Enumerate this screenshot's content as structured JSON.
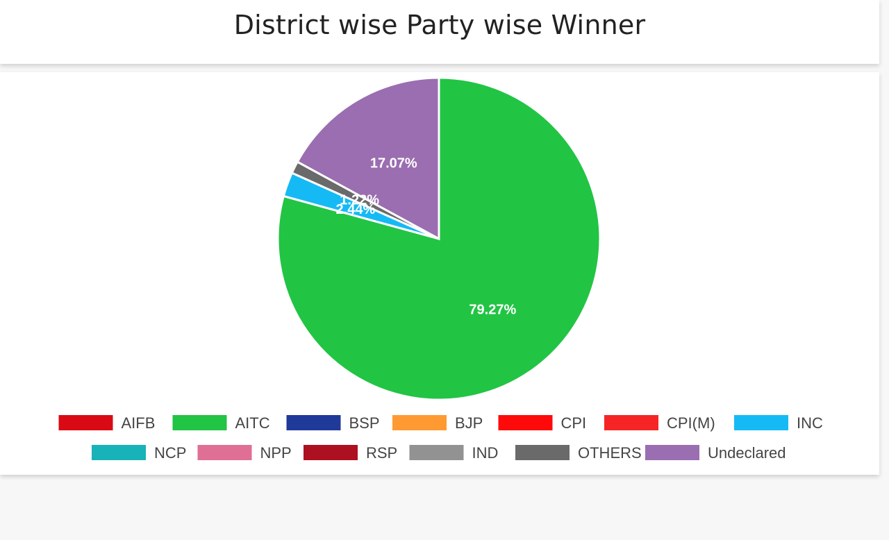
{
  "header": {
    "title": "District wise Party wise Winner"
  },
  "chart_data": {
    "type": "pie",
    "title": "District wise Party wise Winner",
    "slices": [
      {
        "name": "AIFB",
        "value": 0,
        "color": "#d90a14",
        "label": ""
      },
      {
        "name": "AITC",
        "value": 79.27,
        "color": "#22c444",
        "label": "79.27%"
      },
      {
        "name": "BSP",
        "value": 0,
        "color": "#1f3a98",
        "label": ""
      },
      {
        "name": "BJP",
        "value": 0,
        "color": "#ff9a33",
        "label": ""
      },
      {
        "name": "CPI",
        "value": 0,
        "color": "#ff0a0a",
        "label": ""
      },
      {
        "name": "CPI(M)",
        "value": 0,
        "color": "#f52525",
        "label": ""
      },
      {
        "name": "INC",
        "value": 2.44,
        "color": "#15baf5",
        "label": "2.44%"
      },
      {
        "name": "NCP",
        "value": 0,
        "color": "#18b3b8",
        "label": ""
      },
      {
        "name": "NPP",
        "value": 0,
        "color": "#e06f96",
        "label": ""
      },
      {
        "name": "RSP",
        "value": 0,
        "color": "#ad1020",
        "label": ""
      },
      {
        "name": "IND",
        "value": 0,
        "color": "#929292",
        "label": ""
      },
      {
        "name": "OTHERS",
        "value": 1.22,
        "color": "#6a6a6a",
        "label": "1.22%"
      },
      {
        "name": "Undeclared",
        "value": 17.07,
        "color": "#9a6eb0",
        "label": "17.07%"
      }
    ],
    "legend": {
      "position": "bottom",
      "rows": [
        [
          "AIFB",
          "AITC",
          "BSP",
          "BJP",
          "CPI",
          "CPI(M)",
          "INC"
        ],
        [
          "NCP",
          "NPP",
          "RSP",
          "IND",
          "OTHERS",
          "Undeclared"
        ]
      ]
    }
  }
}
